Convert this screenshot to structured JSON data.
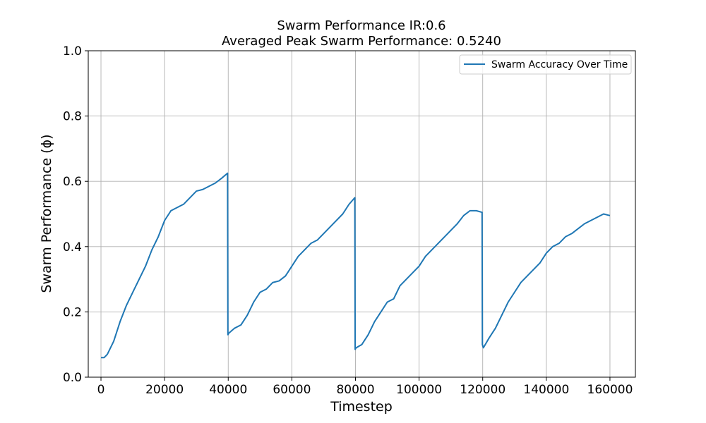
{
  "chart_data": {
    "type": "line",
    "title_line1": "Swarm Performance IR:0.6",
    "title_line2": "Averaged Peak Swarm Performance: 0.5240",
    "xlabel": "Timestep",
    "ylabel": "Swarm Performance (ϕ)",
    "xlim": [
      -4000,
      168000
    ],
    "ylim": [
      0.0,
      1.0
    ],
    "xticks": [
      0,
      20000,
      40000,
      60000,
      80000,
      100000,
      120000,
      140000,
      160000
    ],
    "xtick_labels": [
      "0",
      "20000",
      "40000",
      "60000",
      "80000",
      "100000",
      "120000",
      "140000",
      "160000"
    ],
    "yticks": [
      0.0,
      0.2,
      0.4,
      0.6,
      0.8,
      1.0
    ],
    "ytick_labels": [
      "0.0",
      "0.2",
      "0.4",
      "0.6",
      "0.8",
      "1.0"
    ],
    "grid": true,
    "legend_position": "top-right",
    "line_color": "#1f77b4",
    "series": [
      {
        "name": "Swarm Accuracy Over Time",
        "x": [
          0,
          1000,
          2000,
          4000,
          6000,
          8000,
          10000,
          12000,
          14000,
          16000,
          18000,
          20000,
          22000,
          24000,
          26000,
          28000,
          30000,
          32000,
          34000,
          36000,
          38000,
          39800,
          39900,
          40200,
          42000,
          44000,
          46000,
          48000,
          50000,
          52000,
          54000,
          56000,
          58000,
          60000,
          62000,
          64000,
          66000,
          68000,
          70000,
          72000,
          74000,
          76000,
          78000,
          79800,
          79900,
          80200,
          82000,
          84000,
          86000,
          88000,
          90000,
          92000,
          94000,
          96000,
          98000,
          100000,
          102000,
          104000,
          106000,
          108000,
          110000,
          112000,
          114000,
          116000,
          118000,
          119800,
          119900,
          120200,
          122000,
          124000,
          126000,
          128000,
          130000,
          132000,
          134000,
          136000,
          138000,
          140000,
          142000,
          144000,
          146000,
          148000,
          150000,
          152000,
          154000,
          156000,
          158000,
          160000
        ],
        "y": [
          0.06,
          0.06,
          0.07,
          0.11,
          0.17,
          0.22,
          0.26,
          0.3,
          0.34,
          0.39,
          0.43,
          0.48,
          0.51,
          0.52,
          0.53,
          0.55,
          0.57,
          0.575,
          0.585,
          0.595,
          0.61,
          0.625,
          0.13,
          0.135,
          0.15,
          0.16,
          0.19,
          0.23,
          0.26,
          0.27,
          0.29,
          0.295,
          0.31,
          0.34,
          0.37,
          0.39,
          0.41,
          0.42,
          0.44,
          0.46,
          0.48,
          0.5,
          0.53,
          0.55,
          0.085,
          0.09,
          0.1,
          0.13,
          0.17,
          0.2,
          0.23,
          0.24,
          0.28,
          0.3,
          0.32,
          0.34,
          0.37,
          0.39,
          0.41,
          0.43,
          0.45,
          0.47,
          0.495,
          0.51,
          0.51,
          0.505,
          0.1,
          0.09,
          0.12,
          0.15,
          0.19,
          0.23,
          0.26,
          0.29,
          0.31,
          0.33,
          0.35,
          0.38,
          0.4,
          0.41,
          0.43,
          0.44,
          0.455,
          0.47,
          0.48,
          0.49,
          0.5,
          0.495
        ]
      }
    ]
  }
}
